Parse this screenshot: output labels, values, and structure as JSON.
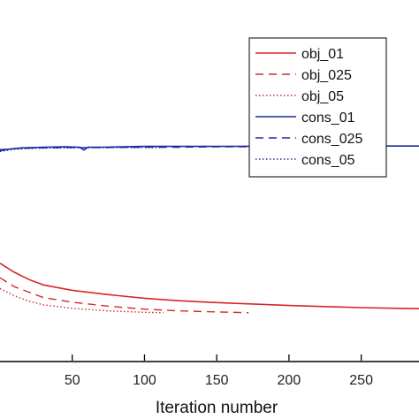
{
  "chart_data": {
    "type": "line",
    "xlabel": "Iteration number",
    "x_ticks": [
      50,
      100,
      150,
      200,
      250
    ],
    "xlim": [
      0,
      290
    ],
    "ylim": [
      0,
      1
    ],
    "grid": false,
    "legend_position": "top-right",
    "series": [
      {
        "name": "obj_01",
        "color": "#d62728",
        "dash": "solid",
        "line_width": 1.6,
        "x": [
          0,
          10,
          20,
          30,
          50,
          75,
          100,
          125,
          150,
          175,
          200,
          225,
          250,
          275,
          290
        ],
        "y": [
          0.27,
          0.245,
          0.225,
          0.21,
          0.195,
          0.183,
          0.173,
          0.166,
          0.161,
          0.157,
          0.153,
          0.15,
          0.147,
          0.145,
          0.144
        ]
      },
      {
        "name": "obj_025",
        "color": "#d62728",
        "dash": "dashed",
        "line_width": 1.4,
        "x": [
          0,
          10,
          20,
          30,
          50,
          75,
          100,
          125,
          150,
          172
        ],
        "y": [
          0.23,
          0.205,
          0.19,
          0.175,
          0.162,
          0.151,
          0.143,
          0.138,
          0.135,
          0.133
        ]
      },
      {
        "name": "obj_05",
        "color": "#d62728",
        "dash": "dotted",
        "line_width": 1.4,
        "x": [
          0,
          10,
          20,
          30,
          50,
          75,
          100,
          113
        ],
        "y": [
          0.2,
          0.18,
          0.165,
          0.155,
          0.145,
          0.138,
          0.134,
          0.133
        ]
      },
      {
        "name": "cons_01",
        "color": "#1f2a9e",
        "dash": "solid",
        "line_width": 1.6,
        "x": [
          0,
          5,
          15,
          30,
          45,
          55,
          58,
          61,
          70,
          85,
          100,
          130,
          160,
          200,
          240,
          270,
          290
        ],
        "y": [
          0.585,
          0.586,
          0.59,
          0.592,
          0.593,
          0.592,
          0.584,
          0.592,
          0.592,
          0.593,
          0.594,
          0.594,
          0.594,
          0.595,
          0.595,
          0.595,
          0.595
        ]
      },
      {
        "name": "cons_025",
        "color": "#1f2a9e",
        "dash": "dashed",
        "line_width": 1.4,
        "x": [
          0,
          10,
          25,
          50,
          75,
          100,
          125,
          150,
          172
        ],
        "y": [
          0.582,
          0.588,
          0.59,
          0.591,
          0.591,
          0.592,
          0.592,
          0.593,
          0.593
        ]
      },
      {
        "name": "cons_05",
        "color": "#1f2a9e",
        "dash": "dotted",
        "line_width": 1.4,
        "x": [
          0,
          10,
          25,
          50,
          75,
          100,
          113
        ],
        "y": [
          0.58,
          0.586,
          0.589,
          0.59,
          0.591,
          0.591,
          0.591
        ]
      }
    ]
  }
}
